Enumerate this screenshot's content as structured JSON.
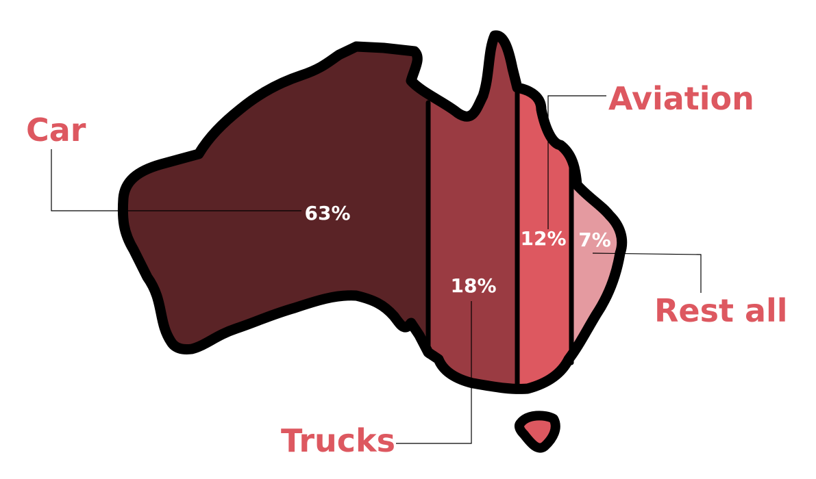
{
  "chart_data": {
    "type": "pie",
    "title": "",
    "categories": [
      "Car",
      "Trucks",
      "Aviation",
      "Rest all"
    ],
    "values": [
      63,
      18,
      12,
      7
    ],
    "value_labels": [
      "63%",
      "18%",
      "12%",
      "7%"
    ],
    "unit": "%",
    "series_colors": [
      "#5a2326",
      "#9a3b42",
      "#dd5860",
      "#e49aa0"
    ],
    "label_color": "#dd5860",
    "outline_color": "#000000"
  }
}
